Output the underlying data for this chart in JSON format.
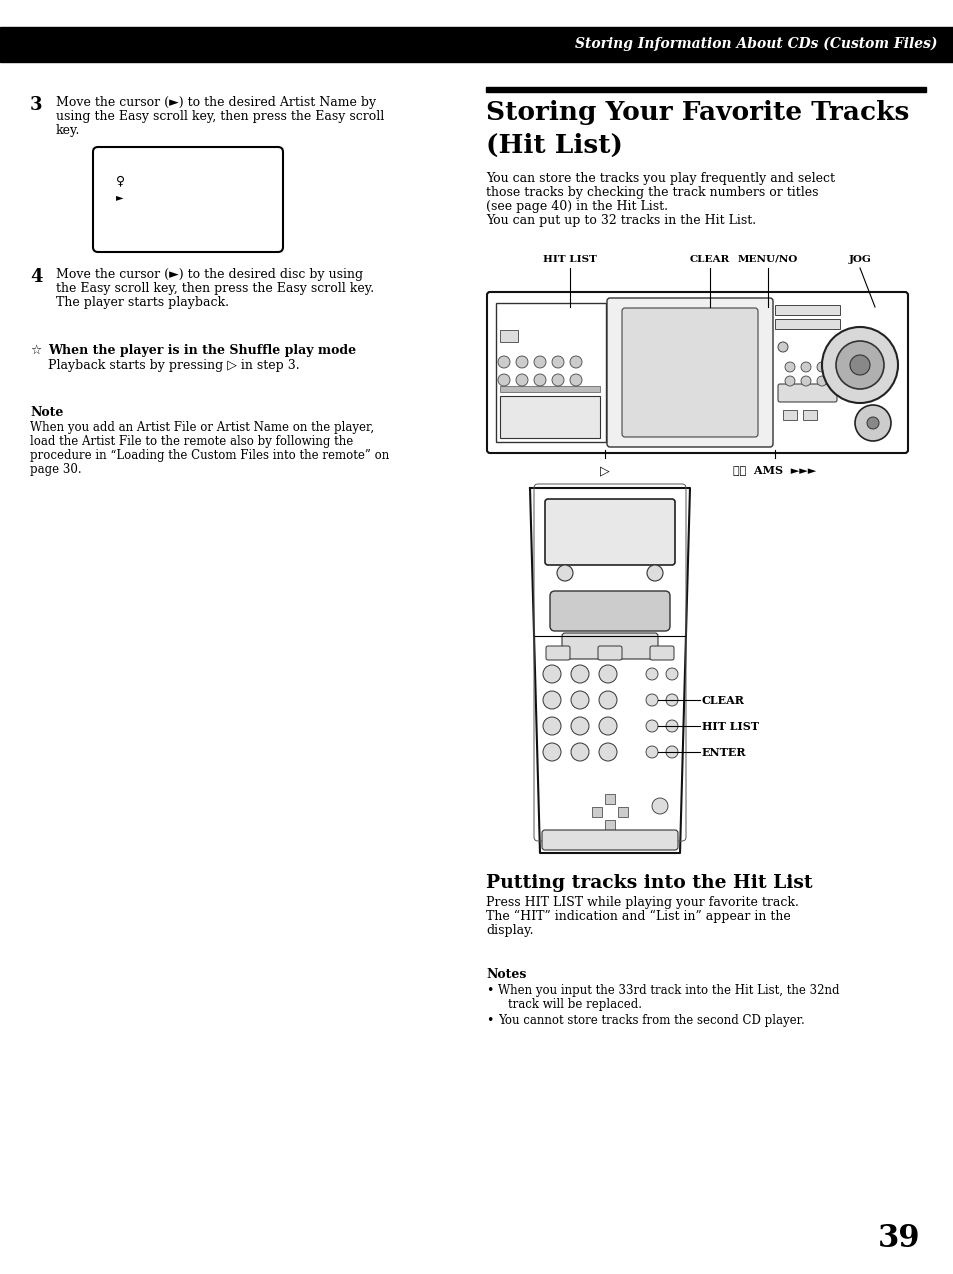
{
  "page_bg": "#ffffff",
  "header_text": "Storing Information About CDs (Custom Files)",
  "step3_num": "3",
  "step3_line1": "Move the cursor (►) to the desired Artist Name by",
  "step3_line2": "using the Easy scroll key, then press the Easy scroll",
  "step3_line3": "key.",
  "step4_num": "4",
  "step4_line1": "Move the cursor (►) to the desired disc by using",
  "step4_line2": "the Easy scroll key, then press the Easy scroll key.",
  "step4_line3": "The player starts playback.",
  "tip_title": "When the player is in the Shuffle play mode",
  "tip_text": "Playback starts by pressing ▷ in step 3.",
  "note_title": "Note",
  "note_line1": "When you add an Artist File or Artist Name on the player,",
  "note_line2": "load the Artist File to the remote also by following the",
  "note_line3": "procedure in “Loading the Custom Files into the remote” on",
  "note_line4": "page 30.",
  "right_title1": "Storing Your Favorite Tracks",
  "right_title2": "(Hit List)",
  "intro_line1": "You can store the tracks you play frequently and select",
  "intro_line2": "those tracks by checking the track numbers or titles",
  "intro_line3": "(see page 40) in the Hit List.",
  "intro_line4": "You can put up to 32 tracks in the Hit List.",
  "lbl_hitlist": "HIT LIST",
  "lbl_clear": "CLEAR",
  "lbl_menuno": "MENU/NO",
  "lbl_jog": "JOG",
  "lbl_play": "▷",
  "lbl_ams": "⏮⏮  AMS  ►►►",
  "rem_lbl_clear": "CLEAR",
  "rem_lbl_hitlist": "HIT LIST",
  "rem_lbl_enter": "ENTER",
  "putting_title": "Putting tracks into the Hit List",
  "putting_line1": "Press HIT LIST while playing your favorite track.",
  "putting_line2": "The “HIT” indication and “List in” appear in the",
  "putting_line3": "display.",
  "notes_title": "Notes",
  "note_b1a": "When you input the 33rd track into the Hit List, the 32nd",
  "note_b1b": "track will be replaced.",
  "note_b2": "You cannot store tracks from the second CD player.",
  "page_number": "39"
}
